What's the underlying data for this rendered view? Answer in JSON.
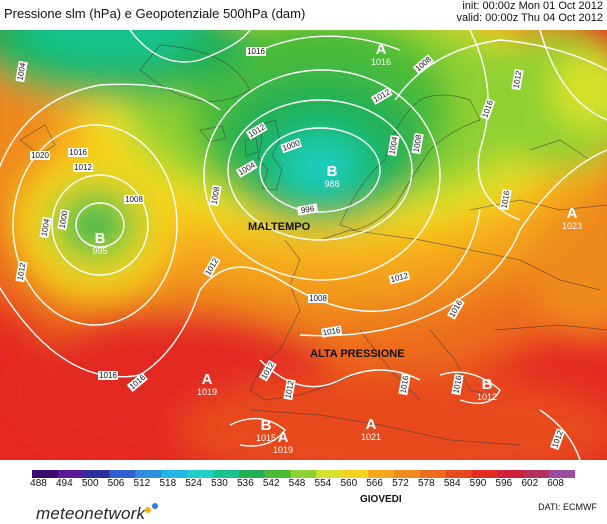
{
  "header": {
    "title": "Pressione slm (hPa) e Geopotenziale 500hPa (dam)",
    "init": "init: 00:00z Mon 01 Oct 2012",
    "valid": "valid: 00:00z Thu 04 Oct 2012"
  },
  "pressure_centers": [
    {
      "letter": "B",
      "value": "995"
    },
    {
      "letter": "B",
      "value": "988"
    },
    {
      "letter": "A",
      "value": "1016"
    },
    {
      "letter": "A",
      "value": "1023"
    },
    {
      "letter": "A",
      "value": "1019"
    },
    {
      "letter": "B",
      "value": "1015"
    },
    {
      "letter": "A",
      "value": "1019"
    },
    {
      "letter": "A",
      "value": "1021"
    },
    {
      "letter": "B",
      "value": "1012"
    }
  ],
  "annotations": [
    "MALTEMPO",
    "ALTA PRESSIONE"
  ],
  "isobar_labels": [
    "1004",
    "1016",
    "1020",
    "1012",
    "1008",
    "1004",
    "1000",
    "1012",
    "1016",
    "1012",
    "1004",
    "1000",
    "1008",
    "996",
    "1012",
    "1016",
    "1012",
    "1008",
    "1016",
    "1008",
    "1004",
    "1012",
    "1016",
    "1012",
    "1008",
    "1016",
    "1016",
    "1016",
    "1012",
    "1012",
    "1016",
    "1016",
    "1012"
  ],
  "scale": {
    "labels": [
      "488",
      "494",
      "500",
      "506",
      "512",
      "518",
      "524",
      "530",
      "536",
      "542",
      "548",
      "554",
      "560",
      "566",
      "572",
      "578",
      "584",
      "590",
      "596",
      "602",
      "608"
    ],
    "colors": [
      "#3b0a6e",
      "#5a1a9a",
      "#2c2f9e",
      "#2f5fd0",
      "#2f8de0",
      "#22b6e6",
      "#1ed0c8",
      "#17c38e",
      "#22b055",
      "#49bb37",
      "#8fd033",
      "#d6e12b",
      "#f6d21e",
      "#f5a81c",
      "#f08a1c",
      "#ec6c1e",
      "#e84a1f",
      "#e32a22",
      "#cf1f3a",
      "#b6305e",
      "#9c4c9e"
    ]
  },
  "footer": {
    "day": "GIOVEDI",
    "source": "DATI: ECMWF",
    "logo": "meteonetwork"
  }
}
